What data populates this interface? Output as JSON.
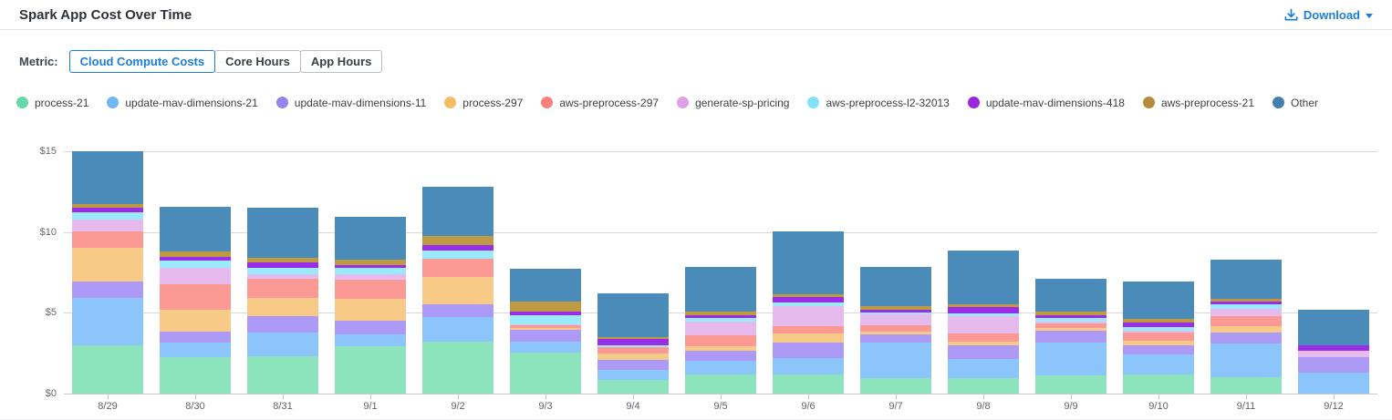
{
  "header": {
    "title": "Spark App Cost Over Time",
    "download_label": "Download"
  },
  "metric": {
    "label": "Metric:",
    "options": [
      {
        "label": "Cloud Compute Costs",
        "selected": true
      },
      {
        "label": "Core Hours",
        "selected": false
      },
      {
        "label": "App Hours",
        "selected": false
      }
    ]
  },
  "colors": {
    "accent_blue": "#1b7ed8",
    "grid": "#d9d9d9",
    "axis_text": "#65696e"
  },
  "chart_data": {
    "type": "bar",
    "stacked": true,
    "title": "Spark App Cost Over Time",
    "xlabel": "",
    "ylabel": "",
    "ylim": [
      0,
      15
    ],
    "grid": true,
    "legend_position": "top",
    "y_ticks": [
      {
        "v": 15,
        "label": "$15"
      },
      {
        "v": 10,
        "label": "$10"
      },
      {
        "v": 5,
        "label": "$5"
      },
      {
        "v": 0,
        "label": "$0"
      }
    ],
    "categories": [
      "8/29",
      "8/30",
      "8/31",
      "9/1",
      "9/2",
      "9/3",
      "9/4",
      "9/5",
      "9/6",
      "9/7",
      "9/8",
      "9/9",
      "9/10",
      "9/11",
      "9/12"
    ],
    "series": [
      {
        "name": "process-21",
        "color": "#8CE3BC",
        "dot_color": "#66D9A8",
        "values": [
          3.0,
          2.25,
          2.3,
          2.96,
          3.19,
          2.55,
          0.85,
          1.18,
          1.18,
          0.94,
          0.94,
          1.13,
          1.18,
          1.0,
          0.0
        ]
      },
      {
        "name": "update-mav-dimensions-21",
        "color": "#8CC5FB",
        "dot_color": "#6FB7F4",
        "values": [
          2.9,
          0.9,
          1.5,
          0.71,
          1.56,
          0.69,
          0.6,
          0.88,
          1.03,
          2.22,
          1.22,
          2.03,
          1.26,
          2.13,
          1.28
        ]
      },
      {
        "name": "update-mav-dimensions-11",
        "color": "#AD9AF7",
        "dot_color": "#9685EE",
        "values": [
          1.05,
          0.66,
          0.97,
          0.84,
          0.75,
          0.69,
          0.66,
          0.62,
          0.94,
          0.53,
          0.81,
          0.75,
          0.56,
          0.64,
          0.98
        ]
      },
      {
        "name": "process-297",
        "color": "#F8CA87",
        "dot_color": "#F4BC66",
        "values": [
          2.1,
          1.4,
          1.18,
          1.35,
          1.73,
          0.15,
          0.38,
          0.28,
          0.6,
          0.13,
          0.23,
          0.15,
          0.28,
          0.43,
          0.0
        ]
      },
      {
        "name": "aws-preprocess-297",
        "color": "#FB9A95",
        "dot_color": "#F97F7B",
        "values": [
          1.0,
          1.54,
          1.18,
          1.22,
          1.1,
          0.15,
          0.38,
          0.66,
          0.43,
          0.43,
          0.53,
          0.26,
          0.53,
          0.6,
          0.0
        ]
      },
      {
        "name": "generate-sp-pricing",
        "color": "#E6BAED",
        "dot_color": "#DFA0E8",
        "values": [
          0.72,
          1.05,
          0.28,
          0.34,
          0.0,
          0.08,
          0.0,
          0.85,
          1.26,
          0.64,
          1.07,
          0.11,
          0.09,
          0.43,
          0.38
        ]
      },
      {
        "name": "aws-preprocess-l2-32013",
        "color": "#9BE9FC",
        "dot_color": "#82E3F8",
        "values": [
          0.48,
          0.45,
          0.37,
          0.37,
          0.51,
          0.53,
          0.15,
          0.19,
          0.19,
          0.15,
          0.15,
          0.23,
          0.23,
          0.28,
          0.0
        ]
      },
      {
        "name": "update-mav-dimensions-418",
        "color": "#9A2DE8",
        "dot_color": "#9A27DD",
        "values": [
          0.27,
          0.19,
          0.32,
          0.19,
          0.34,
          0.24,
          0.38,
          0.19,
          0.34,
          0.15,
          0.38,
          0.19,
          0.28,
          0.19,
          0.34
        ]
      },
      {
        "name": "aws-preprocess-21",
        "color": "#BE9A43",
        "dot_color": "#B78A3A",
        "values": [
          0.21,
          0.37,
          0.32,
          0.32,
          0.56,
          0.6,
          0.13,
          0.23,
          0.19,
          0.23,
          0.19,
          0.23,
          0.19,
          0.19,
          0.0
        ]
      },
      {
        "name": "Other",
        "color": "#4A8BBA",
        "dot_color": "#4380AF",
        "values": [
          3.27,
          2.77,
          3.09,
          2.66,
          3.05,
          2.07,
          2.66,
          2.78,
          3.86,
          2.44,
          3.33,
          2.03,
          2.35,
          2.39,
          2.2
        ]
      }
    ]
  }
}
